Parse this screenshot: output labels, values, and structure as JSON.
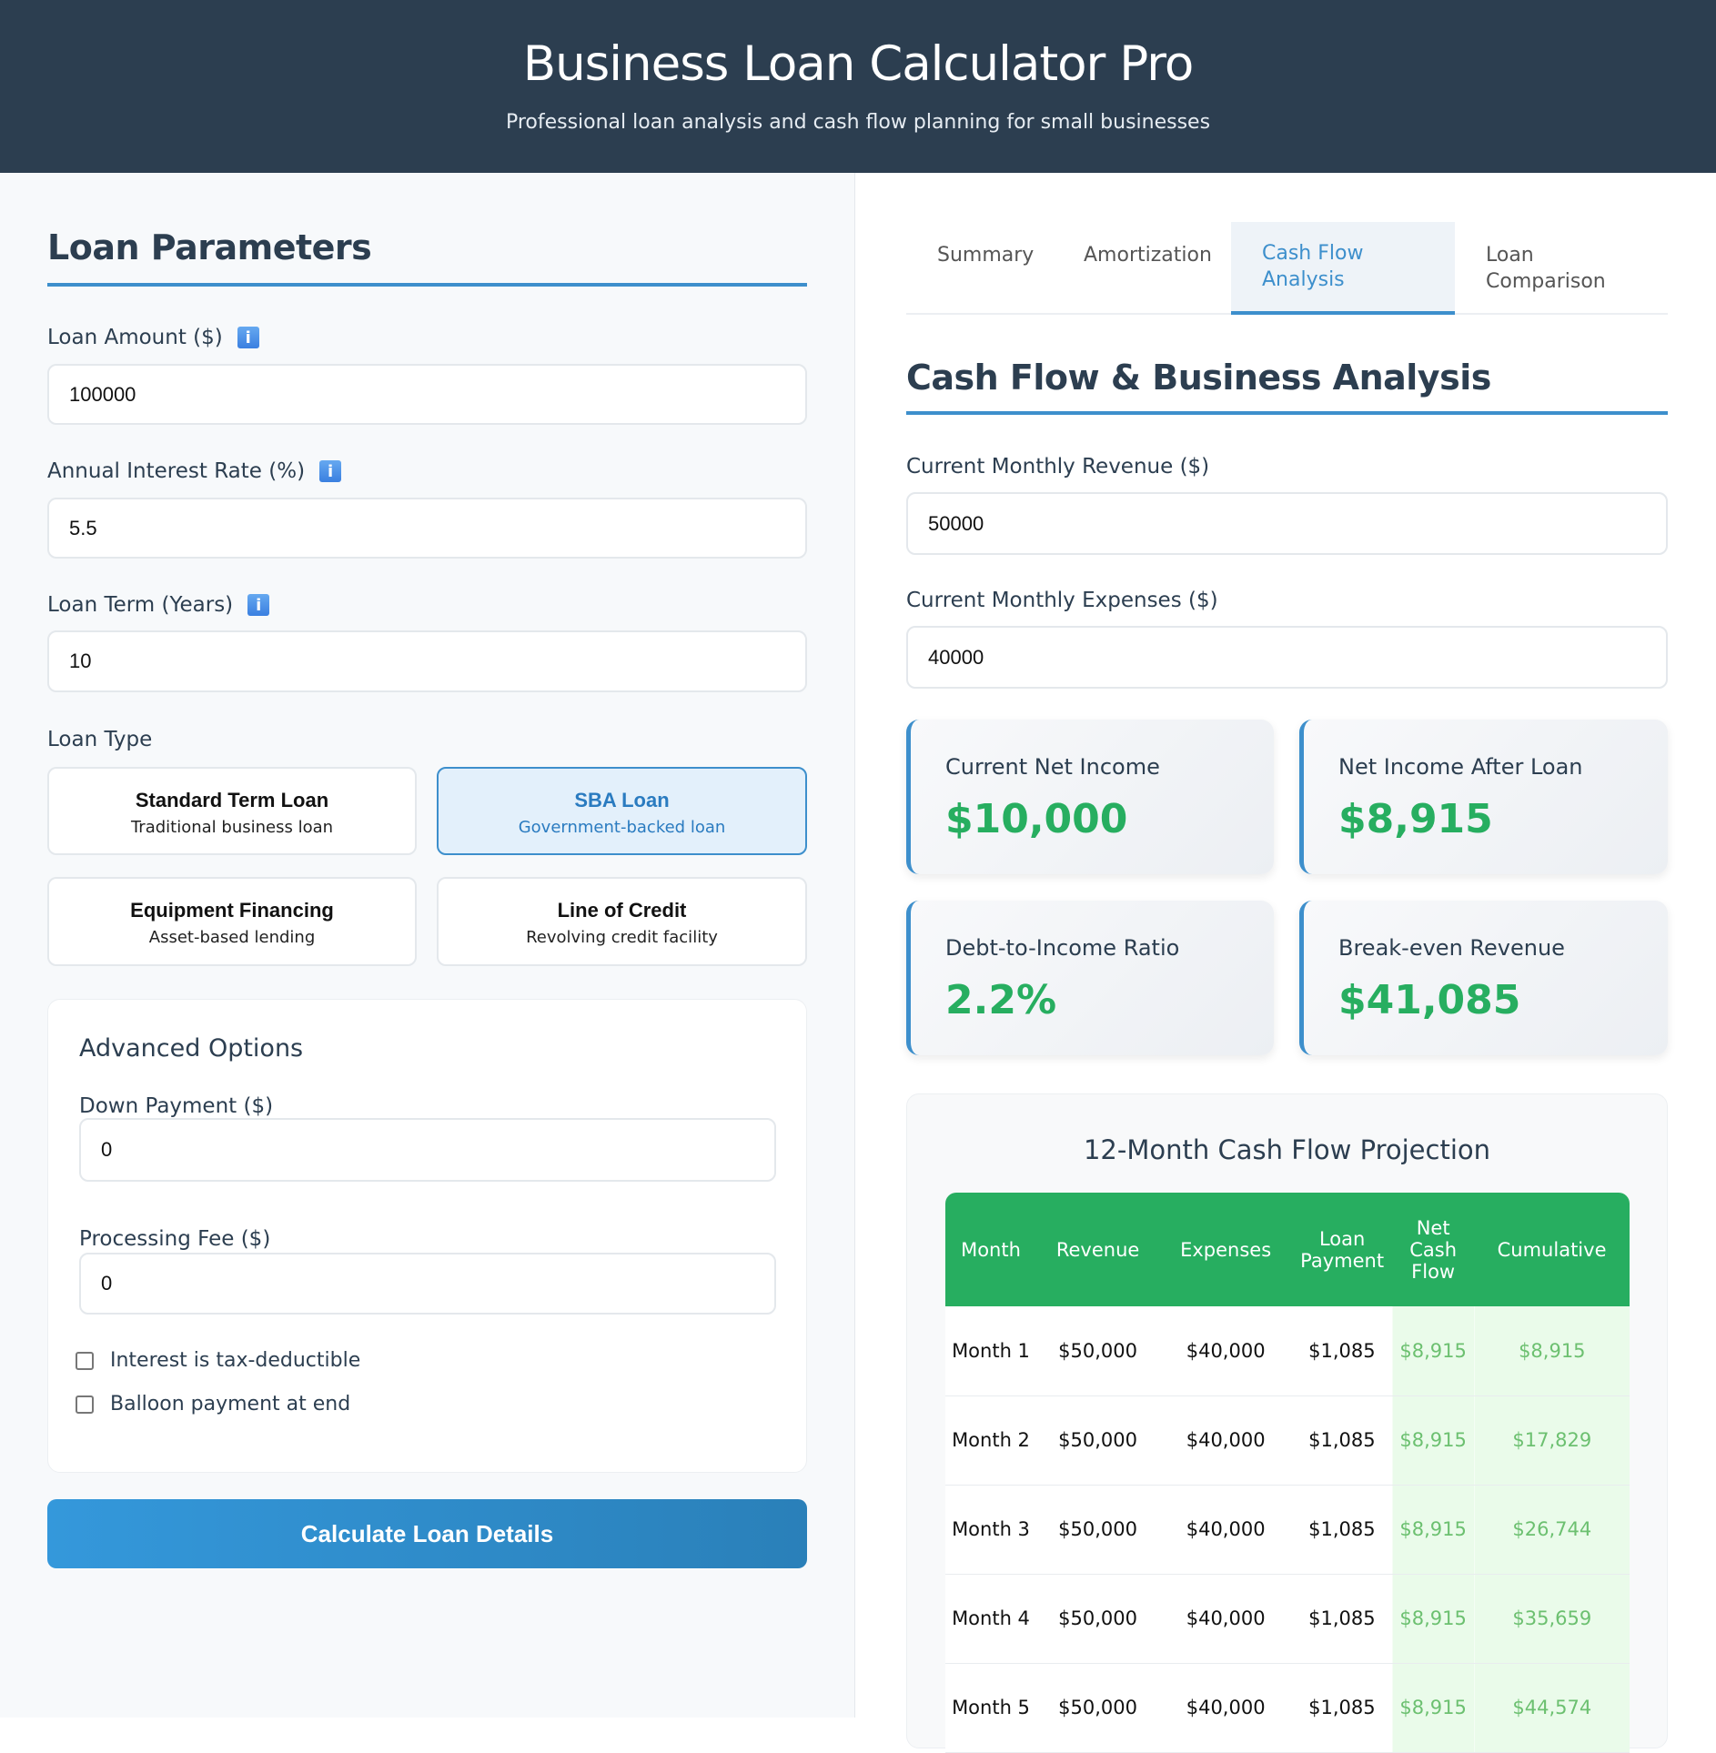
{
  "header": {
    "title": "Business Loan Calculator Pro",
    "subtitle": "Professional loan analysis and cash flow planning for small businesses"
  },
  "left": {
    "title": "Loan Parameters",
    "loan_amount": {
      "label": "Loan Amount ($)",
      "value": "100000"
    },
    "interest_rate": {
      "label": "Annual Interest Rate (%)",
      "value": "5.5"
    },
    "loan_term": {
      "label": "Loan Term (Years)",
      "value": "10"
    },
    "info_glyph": "i",
    "loan_type_label": "Loan Type",
    "loan_types": [
      {
        "title": "Standard Term Loan",
        "desc": "Traditional business loan",
        "selected": false
      },
      {
        "title": "SBA Loan",
        "desc": "Government-backed loan",
        "selected": true
      },
      {
        "title": "Equipment Financing",
        "desc": "Asset-based lending",
        "selected": false
      },
      {
        "title": "Line of Credit",
        "desc": "Revolving credit facility",
        "selected": false
      }
    ],
    "advanced": {
      "title": "Advanced Options",
      "down_payment": {
        "label": "Down Payment ($)",
        "value": "0"
      },
      "processing_fee": {
        "label": "Processing Fee ($)",
        "value": "0"
      },
      "tax_deductible": {
        "label": "Interest is tax-deductible",
        "checked": false
      },
      "balloon": {
        "label": "Balloon payment at end",
        "checked": false
      }
    },
    "calculate_label": "Calculate Loan Details"
  },
  "tabs": [
    {
      "label": "Summary"
    },
    {
      "label": "Amortization"
    },
    {
      "label": "Cash Flow Analysis",
      "active": true
    },
    {
      "label": "Loan Comparison"
    }
  ],
  "cashflow": {
    "title": "Cash Flow & Business Analysis",
    "revenue": {
      "label": "Current Monthly Revenue ($)",
      "value": "50000"
    },
    "expenses": {
      "label": "Current Monthly Expenses ($)",
      "value": "40000"
    },
    "metrics": [
      {
        "label": "Current Net Income",
        "value": "$10,000"
      },
      {
        "label": "Net Income After Loan",
        "value": "$8,915"
      },
      {
        "label": "Debt-to-Income Ratio",
        "value": "2.2%"
      },
      {
        "label": "Break-even Revenue",
        "value": "$41,085"
      }
    ],
    "projection": {
      "title": "12-Month Cash Flow Projection",
      "columns": [
        "Month",
        "Revenue",
        "Expenses",
        "Loan Payment",
        "Net Cash Flow",
        "Cumulative"
      ],
      "rows": [
        [
          "Month 1",
          "$50,000",
          "$40,000",
          "$1,085",
          "$8,915",
          "$8,915"
        ],
        [
          "Month 2",
          "$50,000",
          "$40,000",
          "$1,085",
          "$8,915",
          "$17,829"
        ],
        [
          "Month 3",
          "$50,000",
          "$40,000",
          "$1,085",
          "$8,915",
          "$26,744"
        ],
        [
          "Month 4",
          "$50,000",
          "$40,000",
          "$1,085",
          "$8,915",
          "$35,659"
        ],
        [
          "Month 5",
          "$50,000",
          "$40,000",
          "$1,085",
          "$8,915",
          "$44,574"
        ]
      ]
    }
  },
  "colors": {
    "header": "#2c3e50",
    "accent": "#3d8fcc",
    "positive": "#27ae60"
  }
}
